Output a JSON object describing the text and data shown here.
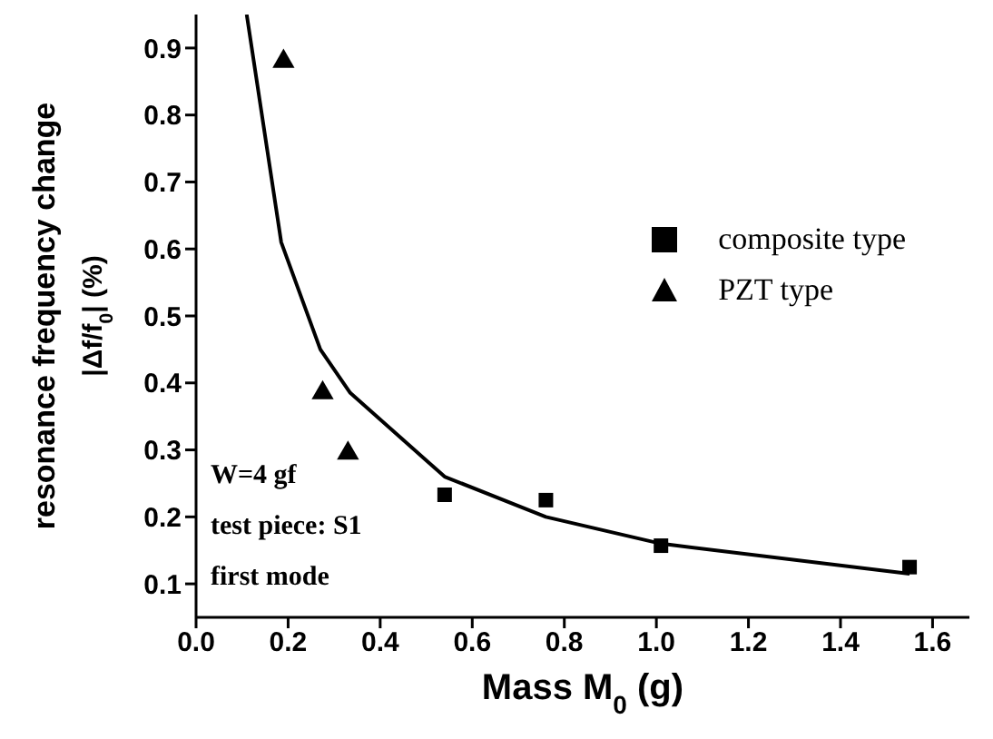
{
  "chart_data": {
    "type": "scatter",
    "xlabel": "Mass M$_{0}$ (g)",
    "ylabel": "resonance frequency change\n|Δf/f$_{0}$|  (%)",
    "xlim": [
      0,
      1.68
    ],
    "ylim": [
      0.05,
      0.95
    ],
    "xticks": [
      {
        "value": 0,
        "label": "0.0"
      },
      0.2,
      0.4,
      0.6,
      0.8,
      {
        "value": 1,
        "label": "1.0"
      },
      1.2,
      1.4,
      1.6
    ],
    "yticks": [
      0.1,
      0.2,
      0.3,
      0.4,
      0.5,
      0.6,
      0.7,
      0.8,
      0.9
    ],
    "grid": false,
    "legend": "right",
    "annotations": [
      "W=4 gf",
      "test piece: S1",
      "first mode"
    ],
    "series": [
      {
        "type": "line",
        "color": "#000000",
        "marker": "none",
        "x": [
          0.11,
          0.185,
          0.27,
          0.335,
          0.54,
          0.76,
          1.01,
          1.55
        ],
        "values": [
          0.95,
          0.61,
          0.45,
          0.385,
          0.26,
          0.2,
          0.16,
          0.115
        ]
      },
      {
        "type": "scatter",
        "name": "composite type",
        "color": "#000000",
        "marker": "square",
        "x": [
          0.54,
          0.76,
          1.01,
          1.55
        ],
        "values": [
          0.233,
          0.225,
          0.157,
          0.125
        ]
      },
      {
        "type": "scatter",
        "name": "PZT type",
        "color": "#000000",
        "marker": "triangle",
        "x": [
          0.19,
          0.275,
          0.33
        ],
        "values": [
          0.88,
          0.385,
          0.295
        ]
      }
    ]
  }
}
